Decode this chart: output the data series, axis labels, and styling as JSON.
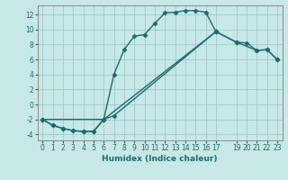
{
  "title": "",
  "xlabel": "Humidex (Indice chaleur)",
  "background_color": "#c8e8e8",
  "grid_color": "#a0c8c8",
  "line_color": "#1a6b6b",
  "spine_color": "#888888",
  "xlim": [
    -0.5,
    23.5
  ],
  "ylim": [
    -4.8,
    13.2
  ],
  "xticks": [
    0,
    1,
    2,
    3,
    4,
    5,
    6,
    7,
    8,
    9,
    10,
    11,
    12,
    13,
    14,
    15,
    16,
    17,
    19,
    20,
    21,
    22,
    23
  ],
  "yticks": [
    -4,
    -2,
    0,
    2,
    4,
    6,
    8,
    10,
    12
  ],
  "series1_x": [
    0,
    1,
    2,
    3,
    4,
    5,
    6,
    7,
    8,
    9,
    10,
    11,
    12,
    13,
    14,
    15,
    16,
    17
  ],
  "series1_y": [
    -2.0,
    -2.8,
    -3.2,
    -3.5,
    -3.6,
    -3.6,
    -2.0,
    4.0,
    7.3,
    9.1,
    9.3,
    10.8,
    12.2,
    12.3,
    12.5,
    12.5,
    12.3,
    9.7
  ],
  "series2_x": [
    0,
    1,
    2,
    3,
    4,
    5,
    6,
    7,
    17,
    19,
    20,
    21,
    22,
    23
  ],
  "series2_y": [
    -2.0,
    -2.8,
    -3.2,
    -3.5,
    -3.6,
    -3.6,
    -2.0,
    -1.5,
    9.7,
    8.3,
    8.2,
    7.2,
    7.3,
    6.0
  ],
  "series3_x": [
    0,
    6,
    17,
    19,
    21,
    22,
    23
  ],
  "series3_y": [
    -2.0,
    -2.0,
    9.7,
    8.3,
    7.2,
    7.3,
    6.0
  ],
  "markersize": 2.5,
  "linewidth": 1.0,
  "xlabel_fontsize": 6.5,
  "tick_fontsize": 5.5
}
